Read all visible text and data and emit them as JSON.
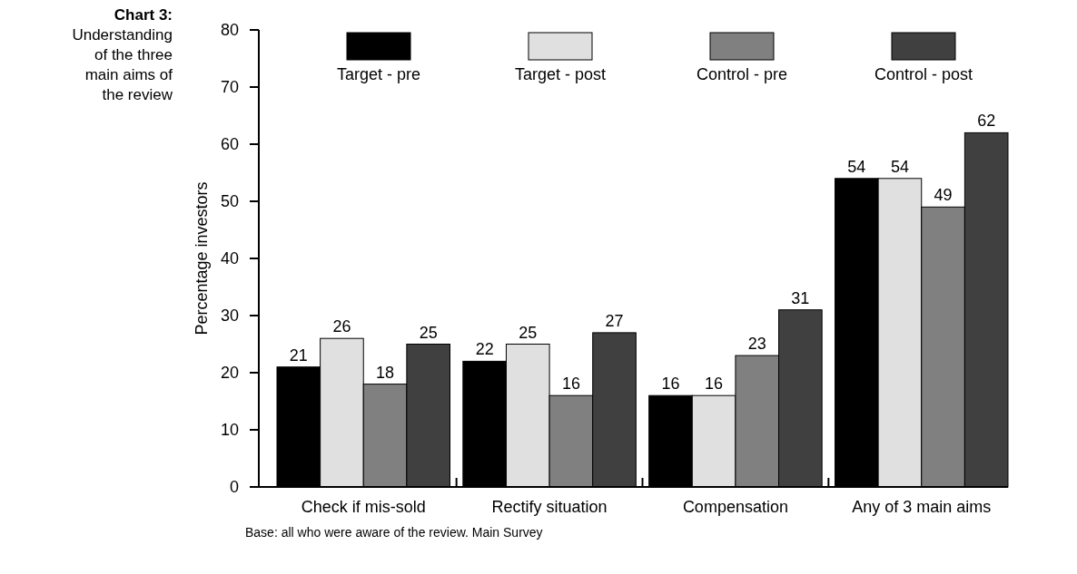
{
  "chart_data": {
    "type": "bar",
    "title": "Chart 3:",
    "subtitle": "Understanding of the three main aims of the review",
    "ylabel": "Percentage  investors",
    "categories": [
      "Check if mis-sold",
      "Rectify situation",
      "Compensation",
      "Any of 3 main aims"
    ],
    "series": [
      {
        "name": "Target - pre",
        "color": "#000000",
        "values": [
          21,
          22,
          16,
          54
        ]
      },
      {
        "name": "Target - post",
        "color": "#e0e0e0",
        "values": [
          26,
          25,
          16,
          54
        ]
      },
      {
        "name": "Control - pre",
        "color": "#808080",
        "values": [
          18,
          16,
          23,
          49
        ]
      },
      {
        "name": "Control - post",
        "color": "#404040",
        "values": [
          25,
          27,
          31,
          62
        ]
      }
    ],
    "ylim": [
      0,
      80
    ],
    "yticks": [
      0,
      10,
      20,
      30,
      40,
      50,
      60,
      70,
      80
    ],
    "data_labels": true,
    "legend": "top",
    "grid": false,
    "annotations": [
      "Base: all who were aware of the review. Main Survey"
    ]
  }
}
